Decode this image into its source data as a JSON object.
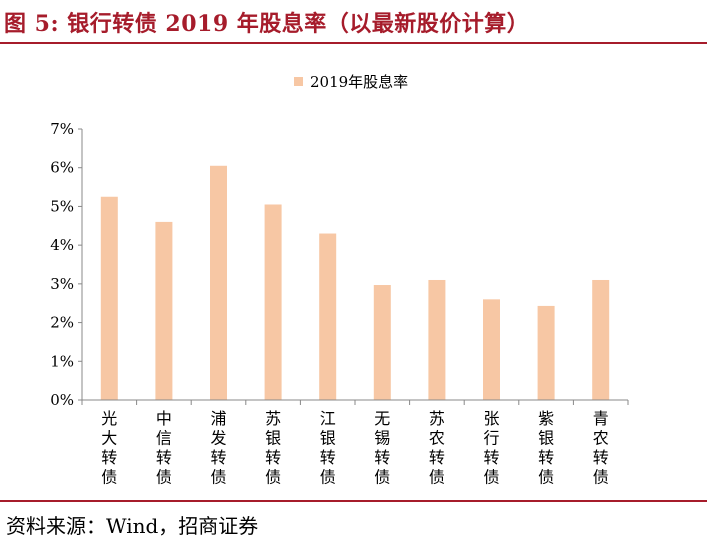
{
  "title": "图 5:  银行转债 2019 年股息率（以最新股价计算）",
  "source": "资料来源：Wind，招商证券",
  "colors": {
    "accent": "#a61c2b",
    "bar": "#f7c7a4"
  },
  "chart_data": {
    "type": "bar",
    "categories": [
      "光大转债",
      "中信转债",
      "浦发转债",
      "苏银转债",
      "江银转债",
      "无锡转债",
      "苏农转债",
      "张行转债",
      "紫银转债",
      "青农转债"
    ],
    "series": [
      {
        "name": "2019年股息率",
        "values": [
          5.25,
          4.6,
          6.05,
          5.05,
          4.3,
          2.97,
          3.1,
          2.6,
          2.43,
          3.1
        ]
      }
    ],
    "ylim": [
      0,
      7
    ],
    "yticks": [
      "0%",
      "1%",
      "2%",
      "3%",
      "4%",
      "5%",
      "6%",
      "7%"
    ],
    "unit": "%",
    "legend_position": "top-center",
    "grid": false
  }
}
